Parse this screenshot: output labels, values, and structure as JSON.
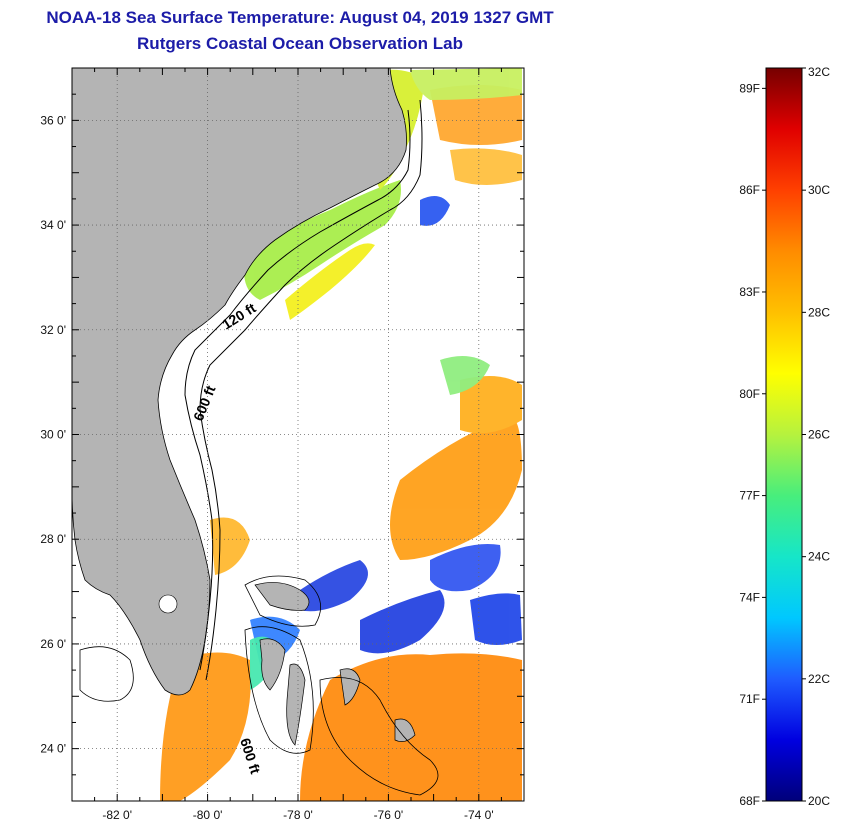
{
  "header": {
    "title": "NOAA-18 Sea Surface Temperature:  August 04, 2019 1327 GMT",
    "subtitle": "Rutgers Coastal Ocean Observation Lab"
  },
  "map": {
    "lon_range": [
      -83,
      -73
    ],
    "lat_range": [
      23,
      37
    ],
    "lon_ticks": [
      {
        "value": -82,
        "label": "-82 0'"
      },
      {
        "value": -80,
        "label": "-80 0'"
      },
      {
        "value": -78,
        "label": "-78 0'"
      },
      {
        "value": -76,
        "label": "-76 0'"
      },
      {
        "value": -74,
        "label": "-74 0'"
      }
    ],
    "lat_ticks": [
      {
        "value": 24,
        "label": "24 0'"
      },
      {
        "value": 26,
        "label": "26 0'"
      },
      {
        "value": 28,
        "label": "28 0'"
      },
      {
        "value": 30,
        "label": "30 0'"
      },
      {
        "value": 32,
        "label": "32 0'"
      },
      {
        "value": 34,
        "label": "34 0'"
      },
      {
        "value": 36,
        "label": "36 0'"
      }
    ],
    "contour_labels": {
      "shelf_120": "120 ft",
      "slope_600": "600 ft",
      "bahamas_600": "600 ft"
    },
    "land_color": "#b4b4b4",
    "grid": "dotted"
  },
  "colorbar": {
    "range_c": [
      20,
      32
    ],
    "celsius_labels": [
      "32C",
      "30C",
      "28C",
      "26C",
      "24C",
      "22C",
      "20C"
    ],
    "fahrenheit_labels": [
      "89F",
      "86F",
      "83F",
      "80F",
      "77F",
      "74F",
      "71F",
      "68F"
    ],
    "colors": [
      "#00007a",
      "#0000e0",
      "#1f5cff",
      "#00c8ff",
      "#16e6c8",
      "#48ee7c",
      "#b6f23e",
      "#ffff00",
      "#ffc000",
      "#ff8c00",
      "#ff4000",
      "#e00000",
      "#760000"
    ]
  }
}
